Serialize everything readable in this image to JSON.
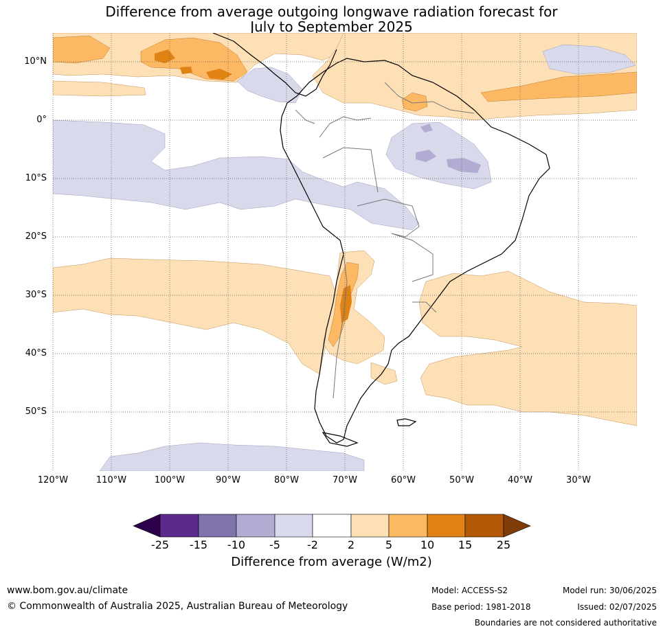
{
  "title_line1": "Difference from average outgoing longwave radiation forecast for",
  "title_line2": "July to September 2025",
  "map": {
    "lat_labels": [
      "10°N",
      "0°",
      "10°S",
      "20°S",
      "30°S",
      "40°S",
      "50°S"
    ],
    "lon_labels": [
      "120°W",
      "110°W",
      "100°W",
      "90°W",
      "80°W",
      "70°W",
      "60°W",
      "50°W",
      "40°W",
      "30°W"
    ],
    "extent": {
      "lon_min": -120,
      "lon_max": -20,
      "lat_min": -60,
      "lat_max": 15
    },
    "grid": "dotted"
  },
  "colorbar": {
    "ticks": [
      "-25",
      "-15",
      "-10",
      "-5",
      "-2",
      "2",
      "5",
      "10",
      "15",
      "25"
    ],
    "colors": [
      "#2d004b",
      "#5b2a8c",
      "#8073ac",
      "#b2abd2",
      "#d8daeb",
      "#ffffff",
      "#fee0b6",
      "#fdb863",
      "#e08214",
      "#b35806",
      "#7f3b08"
    ],
    "label": "Difference from average (W/m2)"
  },
  "footer": {
    "url": "www.bom.gov.au/climate",
    "copyright": "© Commonwealth of Australia 2025, Australian Bureau of Meteorology",
    "model": "Model: ACCESS-S2",
    "base_period": "Base period: 1981-2018",
    "model_run": "Model run: 30/06/2025",
    "issued": "Issued: 02/07/2025",
    "disclaimer": "Boundaries are not considered authoritative"
  }
}
